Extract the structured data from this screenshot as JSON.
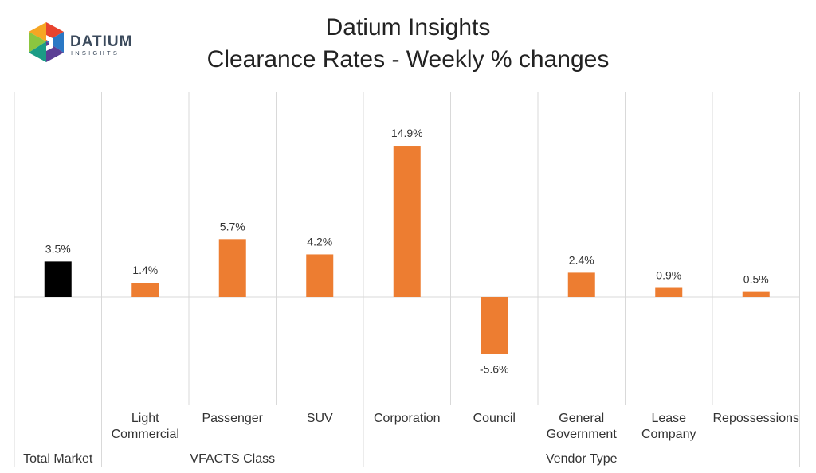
{
  "logo": {
    "word": "DATIUM",
    "sub": "INSIGHTS"
  },
  "chart_data": {
    "type": "bar",
    "title": [
      "Datium Insights",
      "Clearance Rates - Weekly % changes"
    ],
    "categories": [
      "Total Market",
      "Light Commercial",
      "Passenger",
      "SUV",
      "Corporation",
      "Council",
      "General Government",
      "Lease Company",
      "Repossessions"
    ],
    "category_lines": [
      [
        ""
      ],
      [
        "Light",
        "Commercial"
      ],
      [
        "Passenger"
      ],
      [
        "SUV"
      ],
      [
        "Corporation"
      ],
      [
        "Council"
      ],
      [
        "General",
        "Government"
      ],
      [
        "Lease",
        "Company"
      ],
      [
        "Repossessions"
      ]
    ],
    "values": [
      3.5,
      1.4,
      5.7,
      4.2,
      14.9,
      -5.6,
      2.4,
      0.9,
      0.5
    ],
    "value_labels": [
      "3.5%",
      "1.4%",
      "5.7%",
      "4.2%",
      "14.9%",
      "-5.6%",
      "2.4%",
      "0.9%",
      "0.5%"
    ],
    "groups": [
      {
        "label": "Total Market",
        "start": 0,
        "end": 0
      },
      {
        "label": "VFACTS Class",
        "start": 1,
        "end": 3
      },
      {
        "label": "Vendor Type",
        "start": 4,
        "end": 8
      }
    ],
    "colors": {
      "highlight": "#000000",
      "default": "#ed7d31",
      "grid": "#d9d9d9"
    },
    "highlight_index": 0,
    "ylim": [
      -10,
      20
    ],
    "grid": false,
    "legend": "none"
  }
}
